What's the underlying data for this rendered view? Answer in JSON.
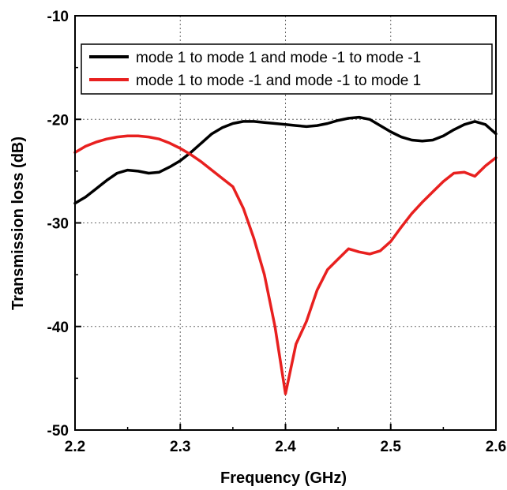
{
  "chart_data": {
    "type": "line",
    "xlabel": "Frequency (GHz)",
    "ylabel": "Transmission loss (dB)",
    "xlim": [
      2.2,
      2.6
    ],
    "ylim": [
      -50,
      -10
    ],
    "x_ticks": [
      "2.2",
      "2.3",
      "2.4",
      "2.5",
      "2.6"
    ],
    "y_ticks": [
      "-10",
      "-20",
      "-30",
      "-40",
      "-50"
    ],
    "grid": true,
    "legend_position": "top-right",
    "series": [
      {
        "name": "mode 1 to mode 1 and mode -1 to mode -1",
        "color": "#000000",
        "points": [
          [
            2.2,
            -28.1
          ],
          [
            2.21,
            -27.5
          ],
          [
            2.22,
            -26.7
          ],
          [
            2.23,
            -25.9
          ],
          [
            2.24,
            -25.2
          ],
          [
            2.25,
            -24.9
          ],
          [
            2.26,
            -25.0
          ],
          [
            2.27,
            -25.2
          ],
          [
            2.28,
            -25.1
          ],
          [
            2.29,
            -24.6
          ],
          [
            2.3,
            -24.0
          ],
          [
            2.31,
            -23.2
          ],
          [
            2.32,
            -22.3
          ],
          [
            2.33,
            -21.4
          ],
          [
            2.34,
            -20.8
          ],
          [
            2.35,
            -20.4
          ],
          [
            2.36,
            -20.2
          ],
          [
            2.37,
            -20.2
          ],
          [
            2.38,
            -20.3
          ],
          [
            2.39,
            -20.4
          ],
          [
            2.4,
            -20.5
          ],
          [
            2.41,
            -20.6
          ],
          [
            2.42,
            -20.7
          ],
          [
            2.43,
            -20.6
          ],
          [
            2.44,
            -20.4
          ],
          [
            2.45,
            -20.1
          ],
          [
            2.46,
            -19.9
          ],
          [
            2.47,
            -19.8
          ],
          [
            2.48,
            -20.0
          ],
          [
            2.49,
            -20.6
          ],
          [
            2.5,
            -21.2
          ],
          [
            2.51,
            -21.7
          ],
          [
            2.52,
            -22.0
          ],
          [
            2.53,
            -22.1
          ],
          [
            2.54,
            -22.0
          ],
          [
            2.55,
            -21.6
          ],
          [
            2.56,
            -21.0
          ],
          [
            2.57,
            -20.5
          ],
          [
            2.58,
            -20.2
          ],
          [
            2.59,
            -20.5
          ],
          [
            2.6,
            -21.4
          ]
        ]
      },
      {
        "name": "mode 1 to mode -1 and mode -1 to mode 1",
        "color": "#e8201f",
        "points": [
          [
            2.2,
            -23.2
          ],
          [
            2.21,
            -22.6
          ],
          [
            2.22,
            -22.2
          ],
          [
            2.23,
            -21.9
          ],
          [
            2.24,
            -21.7
          ],
          [
            2.25,
            -21.6
          ],
          [
            2.26,
            -21.6
          ],
          [
            2.27,
            -21.7
          ],
          [
            2.28,
            -21.9
          ],
          [
            2.29,
            -22.3
          ],
          [
            2.3,
            -22.8
          ],
          [
            2.31,
            -23.4
          ],
          [
            2.32,
            -24.1
          ],
          [
            2.33,
            -24.9
          ],
          [
            2.34,
            -25.7
          ],
          [
            2.35,
            -26.5
          ],
          [
            2.36,
            -28.6
          ],
          [
            2.37,
            -31.5
          ],
          [
            2.38,
            -35.0
          ],
          [
            2.39,
            -40.0
          ],
          [
            2.4,
            -46.5
          ],
          [
            2.41,
            -41.7
          ],
          [
            2.42,
            -39.5
          ],
          [
            2.43,
            -36.5
          ],
          [
            2.44,
            -34.5
          ],
          [
            2.45,
            -33.5
          ],
          [
            2.46,
            -32.5
          ],
          [
            2.47,
            -32.8
          ],
          [
            2.48,
            -33.0
          ],
          [
            2.49,
            -32.7
          ],
          [
            2.5,
            -31.8
          ],
          [
            2.51,
            -30.4
          ],
          [
            2.52,
            -29.1
          ],
          [
            2.53,
            -28.0
          ],
          [
            2.54,
            -27.0
          ],
          [
            2.55,
            -26.0
          ],
          [
            2.56,
            -25.2
          ],
          [
            2.57,
            -25.1
          ],
          [
            2.58,
            -25.5
          ],
          [
            2.59,
            -24.5
          ],
          [
            2.6,
            -23.7
          ]
        ]
      }
    ]
  }
}
